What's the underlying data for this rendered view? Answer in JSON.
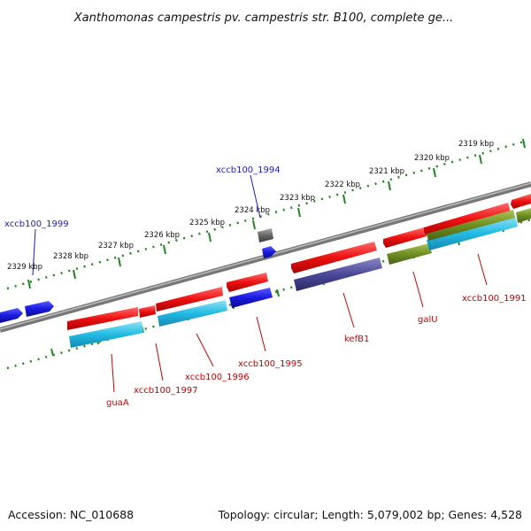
{
  "title": "Xanthomonas campestris pv. campestris str. B100, complete ge...",
  "footer": {
    "accession": "Accession: NC_010688",
    "topology": "Topology: circular; Length: 5,079,002 bp; Genes: 4,528"
  },
  "colors": {
    "forward_gene": "#ee1111",
    "reverse_gene_blue": "#1a1adf",
    "cds_cyan": "#22bbe4",
    "cds_purple": "#4b4897",
    "cds_olive": "#6f8f22",
    "rna_gray": "#666666",
    "backbone": "#888888",
    "ticks": "#228822",
    "label_red": "#cc0000",
    "label_blue": "#1a1acc"
  },
  "scale_labels": [
    "2319 kbp",
    "2320 kbp",
    "2321 kbp",
    "2322 kbp",
    "2323 kbp",
    "2324 kbp",
    "2325 kbp",
    "2326 kbp",
    "2327 kbp",
    "2328 kbp",
    "2329 kbp"
  ],
  "gene_labels": [
    {
      "text": "xccb100_1994",
      "color": "blue"
    },
    {
      "text": "xccb100_1999",
      "color": "blue"
    },
    {
      "text": "xccb100_1991",
      "color": "red"
    },
    {
      "text": "galU",
      "color": "red"
    },
    {
      "text": "kefB1",
      "color": "red"
    },
    {
      "text": "xccb100_1995",
      "color": "red"
    },
    {
      "text": "xccb100_1996",
      "color": "red"
    },
    {
      "text": "xccb100_1997",
      "color": "red"
    },
    {
      "text": "guaA",
      "color": "red"
    }
  ]
}
